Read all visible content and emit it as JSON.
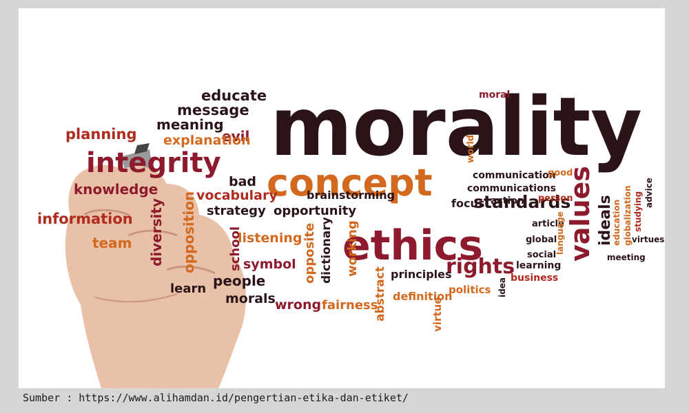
{
  "caption": "Sumber : https://www.alihamdan.id/pengertian-etika-dan-etiket/",
  "colors": {
    "dark": "#2b1418",
    "crimson": "#8e1a2e",
    "red": "#b02a1e",
    "orange": "#d2691e",
    "page": "#d6d6d6",
    "frame": "#ffffff"
  },
  "words": [
    {
      "text": "morality",
      "color": "dark"
    },
    {
      "text": "concept",
      "color": "orange"
    },
    {
      "text": "ethics",
      "color": "crimson"
    },
    {
      "text": "integrity",
      "color": "crimson"
    },
    {
      "text": "values",
      "color": "crimson"
    },
    {
      "text": "standards",
      "color": "dark"
    },
    {
      "text": "rights",
      "color": "crimson"
    },
    {
      "text": "ideals",
      "color": "dark"
    },
    {
      "text": "educate",
      "color": "dark"
    },
    {
      "text": "message",
      "color": "dark"
    },
    {
      "text": "meaning",
      "color": "dark"
    },
    {
      "text": "evil",
      "color": "crimson"
    },
    {
      "text": "explanation",
      "color": "orange"
    },
    {
      "text": "planning",
      "color": "red"
    },
    {
      "text": "knowledge",
      "color": "crimson"
    },
    {
      "text": "information",
      "color": "red"
    },
    {
      "text": "team",
      "color": "orange"
    },
    {
      "text": "diversity",
      "color": "crimson"
    },
    {
      "text": "opposition",
      "color": "orange"
    },
    {
      "text": "bad",
      "color": "dark"
    },
    {
      "text": "vocabulary",
      "color": "red"
    },
    {
      "text": "brainstorming",
      "color": "dark"
    },
    {
      "text": "strategy",
      "color": "dark"
    },
    {
      "text": "opportunity",
      "color": "dark"
    },
    {
      "text": "school",
      "color": "crimson"
    },
    {
      "text": "listening",
      "color": "orange"
    },
    {
      "text": "symbol",
      "color": "crimson"
    },
    {
      "text": "people",
      "color": "dark"
    },
    {
      "text": "learn",
      "color": "dark"
    },
    {
      "text": "morals",
      "color": "dark"
    },
    {
      "text": "wrong",
      "color": "crimson"
    },
    {
      "text": "fairness",
      "color": "orange"
    },
    {
      "text": "opposite",
      "color": "orange"
    },
    {
      "text": "dictionary",
      "color": "dark"
    },
    {
      "text": "working",
      "color": "orange"
    },
    {
      "text": "abstract",
      "color": "orange"
    },
    {
      "text": "principles",
      "color": "dark"
    },
    {
      "text": "definition",
      "color": "orange"
    },
    {
      "text": "politics",
      "color": "orange"
    },
    {
      "text": "virtue",
      "color": "orange"
    },
    {
      "text": "idea",
      "color": "dark"
    },
    {
      "text": "focus",
      "color": "dark"
    },
    {
      "text": "moral",
      "color": "crimson"
    },
    {
      "text": "world",
      "color": "orange"
    },
    {
      "text": "communication",
      "color": "dark"
    },
    {
      "text": "communications",
      "color": "dark"
    },
    {
      "text": "good",
      "color": "orange"
    },
    {
      "text": "action",
      "color": "dark"
    },
    {
      "text": "person",
      "color": "red"
    },
    {
      "text": "article",
      "color": "dark"
    },
    {
      "text": "global",
      "color": "dark"
    },
    {
      "text": "social",
      "color": "dark"
    },
    {
      "text": "learning",
      "color": "dark"
    },
    {
      "text": "business",
      "color": "red"
    },
    {
      "text": "language",
      "color": "orange"
    },
    {
      "text": "education",
      "color": "orange"
    },
    {
      "text": "globalization",
      "color": "orange"
    },
    {
      "text": "studying",
      "color": "red"
    },
    {
      "text": "advice",
      "color": "dark"
    },
    {
      "text": "virtues",
      "color": "dark"
    },
    {
      "text": "meeting",
      "color": "dark"
    }
  ]
}
